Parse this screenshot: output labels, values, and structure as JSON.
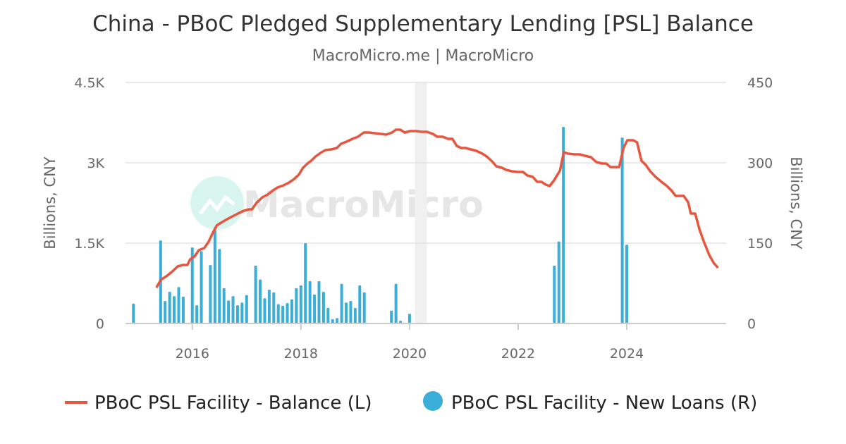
{
  "chart_data": {
    "type": "bar+line",
    "title": "China - PBoC Pledged Supplementary Lending [PSL] Balance",
    "subtitle": "MacroMicro.me | MacroMicro",
    "watermark": "MacroMicro",
    "ylabel_left": "Billions, CNY",
    "ylabel_right": "Billions, CNY",
    "ylim_left": [
      0,
      4500
    ],
    "ylim_right": [
      0,
      450
    ],
    "yticks_left": [
      {
        "v": 0,
        "label": "0"
      },
      {
        "v": 1500,
        "label": "1.5K"
      },
      {
        "v": 3000,
        "label": "3K"
      },
      {
        "v": 4500,
        "label": "4.5K"
      }
    ],
    "yticks_right": [
      {
        "v": 0,
        "label": "0"
      },
      {
        "v": 150,
        "label": "150"
      },
      {
        "v": 300,
        "label": "300"
      },
      {
        "v": 450,
        "label": "450"
      }
    ],
    "xlim": [
      2014.77,
      2025.83
    ],
    "xticks": [
      {
        "v": 2016,
        "label": "2016"
      },
      {
        "v": 2018,
        "label": "2018"
      },
      {
        "v": 2020,
        "label": "2020"
      },
      {
        "v": 2022,
        "label": "2022"
      },
      {
        "v": 2024,
        "label": "2024"
      }
    ],
    "grid": true,
    "shaded_ranges": [
      [
        2020.1,
        2020.32
      ]
    ],
    "legend_position": "bottom",
    "series": [
      {
        "name": "PBoC PSL Facility - Balance (L)",
        "type": "line",
        "axis": "left",
        "color": "#e8553e",
        "points": [
          [
            2015.34,
            670
          ],
          [
            2015.42,
            816
          ],
          [
            2015.52,
            880
          ],
          [
            2015.62,
            960
          ],
          [
            2015.73,
            1066
          ],
          [
            2015.83,
            1092
          ],
          [
            2015.91,
            1092
          ],
          [
            2015.96,
            1197
          ],
          [
            2016.04,
            1250
          ],
          [
            2016.12,
            1368
          ],
          [
            2016.22,
            1408
          ],
          [
            2016.3,
            1526
          ],
          [
            2016.38,
            1697
          ],
          [
            2016.45,
            1829
          ],
          [
            2016.53,
            1882
          ],
          [
            2016.64,
            1947
          ],
          [
            2016.74,
            2000
          ],
          [
            2016.84,
            2053
          ],
          [
            2016.95,
            2105
          ],
          [
            2017.05,
            2132
          ],
          [
            2017.1,
            2132
          ],
          [
            2017.18,
            2250
          ],
          [
            2017.29,
            2355
          ],
          [
            2017.39,
            2408
          ],
          [
            2017.49,
            2487
          ],
          [
            2017.57,
            2539
          ],
          [
            2017.68,
            2579
          ],
          [
            2017.78,
            2632
          ],
          [
            2017.86,
            2684
          ],
          [
            2017.96,
            2776
          ],
          [
            2018.04,
            2908
          ],
          [
            2018.12,
            2987
          ],
          [
            2018.19,
            3039
          ],
          [
            2018.27,
            3118
          ],
          [
            2018.38,
            3197
          ],
          [
            2018.45,
            3237
          ],
          [
            2018.56,
            3250
          ],
          [
            2018.66,
            3276
          ],
          [
            2018.74,
            3355
          ],
          [
            2018.84,
            3395
          ],
          [
            2018.95,
            3447
          ],
          [
            2019.05,
            3487
          ],
          [
            2019.16,
            3566
          ],
          [
            2019.26,
            3566
          ],
          [
            2019.36,
            3553
          ],
          [
            2019.47,
            3539
          ],
          [
            2019.57,
            3526
          ],
          [
            2019.68,
            3566
          ],
          [
            2019.75,
            3618
          ],
          [
            2019.83,
            3618
          ],
          [
            2019.91,
            3566
          ],
          [
            2020.01,
            3592
          ],
          [
            2020.12,
            3592
          ],
          [
            2020.22,
            3579
          ],
          [
            2020.32,
            3579
          ],
          [
            2020.43,
            3539
          ],
          [
            2020.51,
            3487
          ],
          [
            2020.61,
            3487
          ],
          [
            2020.71,
            3447
          ],
          [
            2020.79,
            3447
          ],
          [
            2020.87,
            3316
          ],
          [
            2020.95,
            3276
          ],
          [
            2021.03,
            3276
          ],
          [
            2021.13,
            3250
          ],
          [
            2021.23,
            3224
          ],
          [
            2021.34,
            3171
          ],
          [
            2021.42,
            3118
          ],
          [
            2021.52,
            3026
          ],
          [
            2021.6,
            2934
          ],
          [
            2021.7,
            2908
          ],
          [
            2021.78,
            2868
          ],
          [
            2021.88,
            2842
          ],
          [
            2021.99,
            2829
          ],
          [
            2022.09,
            2829
          ],
          [
            2022.17,
            2763
          ],
          [
            2022.27,
            2737
          ],
          [
            2022.35,
            2645
          ],
          [
            2022.43,
            2645
          ],
          [
            2022.51,
            2592
          ],
          [
            2022.58,
            2566
          ],
          [
            2022.66,
            2671
          ],
          [
            2022.77,
            2855
          ],
          [
            2022.84,
            3197
          ],
          [
            2022.92,
            3171
          ],
          [
            2023.03,
            3158
          ],
          [
            2023.13,
            3158
          ],
          [
            2023.23,
            3132
          ],
          [
            2023.34,
            3105
          ],
          [
            2023.44,
            3013
          ],
          [
            2023.55,
            2987
          ],
          [
            2023.62,
            2987
          ],
          [
            2023.7,
            2921
          ],
          [
            2023.78,
            2921
          ],
          [
            2023.86,
            2921
          ],
          [
            2023.94,
            3276
          ],
          [
            2024.01,
            3421
          ],
          [
            2024.12,
            3421
          ],
          [
            2024.19,
            3382
          ],
          [
            2024.27,
            3039
          ],
          [
            2024.35,
            2961
          ],
          [
            2024.43,
            2842
          ],
          [
            2024.53,
            2737
          ],
          [
            2024.64,
            2645
          ],
          [
            2024.74,
            2566
          ],
          [
            2024.82,
            2487
          ],
          [
            2024.9,
            2382
          ],
          [
            2024.97,
            2382
          ],
          [
            2025.05,
            2382
          ],
          [
            2025.13,
            2263
          ],
          [
            2025.18,
            2053
          ],
          [
            2025.26,
            2053
          ],
          [
            2025.34,
            1750
          ],
          [
            2025.42,
            1526
          ],
          [
            2025.52,
            1276
          ],
          [
            2025.6,
            1132
          ],
          [
            2025.68,
            1039
          ]
        ]
      },
      {
        "name": "PBoC PSL Facility - New Loans (R)",
        "type": "bar",
        "axis": "right",
        "color": "#3aadd9",
        "points": [
          [
            "2014-12",
            37
          ],
          [
            "2015-06",
            155
          ],
          [
            "2015-07",
            42
          ],
          [
            "2015-08",
            59
          ],
          [
            "2015-09",
            51
          ],
          [
            "2015-10",
            68
          ],
          [
            "2015-11",
            50
          ],
          [
            "2016-01",
            142
          ],
          [
            "2016-02",
            34
          ],
          [
            "2016-03",
            135
          ],
          [
            "2016-05",
            109
          ],
          [
            "2016-06",
            175
          ],
          [
            "2016-07",
            139
          ],
          [
            "2016-08",
            66
          ],
          [
            "2016-09",
            43
          ],
          [
            "2016-10",
            51
          ],
          [
            "2016-11",
            34
          ],
          [
            "2016-12",
            39
          ],
          [
            "2017-01",
            53
          ],
          [
            "2017-03",
            108
          ],
          [
            "2017-04",
            82
          ],
          [
            "2017-05",
            47
          ],
          [
            "2017-06",
            63
          ],
          [
            "2017-07",
            58
          ],
          [
            "2017-08",
            36
          ],
          [
            "2017-09",
            33
          ],
          [
            "2017-10",
            38
          ],
          [
            "2017-11",
            45
          ],
          [
            "2017-12",
            66
          ],
          [
            "2018-01",
            71
          ],
          [
            "2018-02",
            150
          ],
          [
            "2018-03",
            79
          ],
          [
            "2018-04",
            54
          ],
          [
            "2018-05",
            79
          ],
          [
            "2018-06",
            59
          ],
          [
            "2018-07",
            29
          ],
          [
            "2018-08",
            8
          ],
          [
            "2018-09",
            10
          ],
          [
            "2018-10",
            74
          ],
          [
            "2018-11",
            39
          ],
          [
            "2018-12",
            42
          ],
          [
            "2019-01",
            29
          ],
          [
            "2019-02",
            71
          ],
          [
            "2019-03",
            58
          ],
          [
            "2019-09",
            24
          ],
          [
            "2019-10",
            74
          ],
          [
            "2019-11",
            5
          ],
          [
            "2020-01",
            18
          ],
          [
            "2022-09",
            108
          ],
          [
            "2022-10",
            153
          ],
          [
            "2022-11",
            367
          ],
          [
            "2023-12",
            347
          ],
          [
            "2024-01",
            147
          ]
        ]
      }
    ]
  }
}
